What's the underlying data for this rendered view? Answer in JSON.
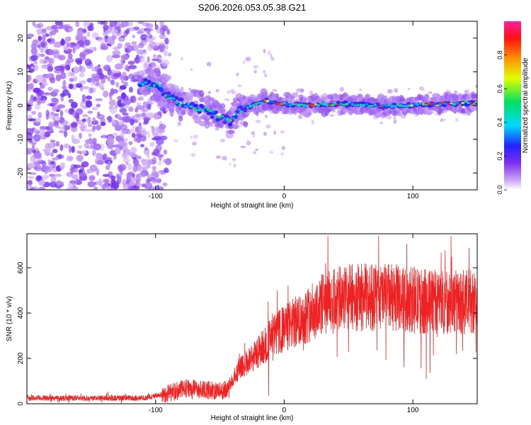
{
  "figure_title": "S206.2026.053.05.38.G21",
  "chart_data": [
    {
      "type": "heatmap",
      "title": "S206.2026.053.05.38.G21",
      "xlabel": "Height of straight line (km)",
      "ylabel": "Frequency (Hz)",
      "xlim": [
        -200,
        150
      ],
      "ylim": [
        -25,
        25
      ],
      "xticks": [
        -100,
        0,
        100
      ],
      "yticks": [
        -20,
        -10,
        0,
        10,
        20
      ],
      "tick_labels_x": [
        "-100",
        "0",
        "100"
      ],
      "tick_labels_y": [
        "-20",
        "-10",
        "0",
        "10",
        "20"
      ],
      "colorbar": {
        "label": "Normalized spectral amplitude",
        "range": [
          0.0,
          1.0
        ],
        "ticks": [
          "0.0",
          "0.2",
          "0.4",
          "0.6",
          "0.8"
        ],
        "colors": [
          "#ffffff",
          "#c9a2f6",
          "#7b2ff0",
          "#2222ff",
          "#00d8ff",
          "#00e060",
          "#e0ff00",
          "#ff9000",
          "#ff1010",
          "#ff20a0"
        ]
      },
      "ridge": {
        "x": [
          -112,
          -100,
          -90,
          -80,
          -70,
          -60,
          -50,
          -42,
          -35,
          -25,
          -15,
          -5,
          0,
          20,
          50,
          80,
          110,
          140,
          150
        ],
        "freq": [
          7,
          6,
          3,
          0.5,
          0,
          -1.5,
          -3.5,
          -5,
          -1.5,
          0,
          1.5,
          0.5,
          0.5,
          0,
          0.5,
          -0.3,
          0.3,
          0.7,
          0.9
        ],
        "peak_amplitude": 0.95
      },
      "noise_region_x": [
        -200,
        -100
      ]
    },
    {
      "type": "line",
      "series_name": "SNR",
      "color": "#ee2222",
      "xlabel": "Height of straight line (km)",
      "ylabel": "SNR (10 * v/v)",
      "xlim": [
        -200,
        150
      ],
      "ylim": [
        0,
        750
      ],
      "xticks": [
        -100,
        0,
        100
      ],
      "yticks": [
        0,
        200,
        400,
        600
      ],
      "tick_labels_x": [
        "-100",
        "0",
        "100"
      ],
      "tick_labels_y": [
        "0",
        "200",
        "400",
        "600"
      ],
      "trend": {
        "x": [
          -200,
          -110,
          -95,
          -75,
          -60,
          -45,
          -35,
          -20,
          -10,
          0,
          15,
          30,
          50,
          80,
          110,
          150
        ],
        "y": [
          25,
          25,
          40,
          70,
          60,
          60,
          150,
          230,
          290,
          330,
          380,
          440,
          470,
          470,
          450,
          450
        ]
      },
      "max_value": 740
    }
  ]
}
